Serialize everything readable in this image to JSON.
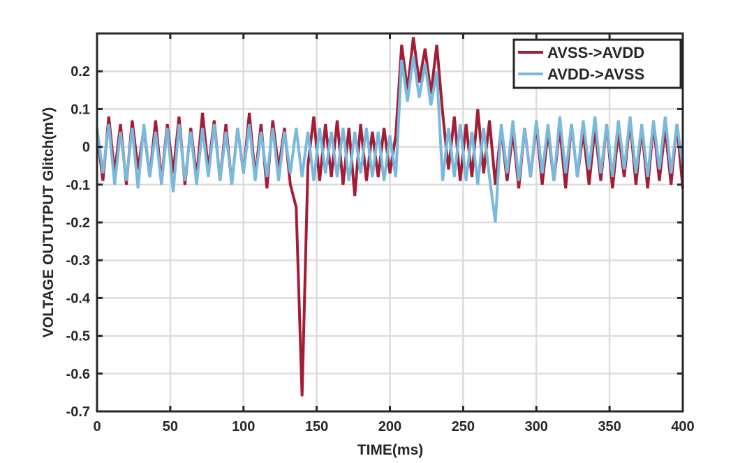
{
  "chart_data": {
    "type": "line",
    "title": "",
    "xlabel": "TIME(ms)",
    "ylabel": "VOLTAGE OUTUTPUT Glitch(mV)",
    "xlim": [
      0,
      400
    ],
    "ylim": [
      -0.7,
      0.3
    ],
    "xticks": [
      0,
      50,
      100,
      150,
      200,
      250,
      300,
      350,
      400
    ],
    "yticks": [
      -0.7,
      -0.6,
      -0.5,
      -0.4,
      -0.3,
      -0.2,
      -0.1,
      0,
      0.1,
      0.2
    ],
    "ytick_labels": [
      "-0.7",
      "-0.6",
      "-0.5",
      "-0.4",
      "-0.3",
      "-0.2",
      "-0.1",
      "0",
      "0.1",
      "0.2"
    ],
    "grid": true,
    "legend_position": "top-right",
    "x_step": 4,
    "series": [
      {
        "name": "AVSS->AVDD",
        "color": "#a51c36",
        "values": [
          0.04,
          -0.09,
          0.08,
          -0.07,
          0.06,
          -0.1,
          0.07,
          -0.06,
          0.05,
          -0.08,
          0.07,
          -0.09,
          0.06,
          -0.07,
          0.08,
          -0.1,
          0.05,
          -0.08,
          0.09,
          -0.06,
          0.07,
          -0.09,
          0.06,
          -0.1,
          0.05,
          -0.07,
          0.09,
          -0.08,
          0.06,
          -0.11,
          0.07,
          -0.06,
          0.05,
          -0.1,
          -0.16,
          -0.66,
          -0.05,
          0.08,
          -0.09,
          0.06,
          -0.08,
          0.07,
          -0.1,
          0.05,
          -0.13,
          0.06,
          -0.09,
          0.04,
          -0.08,
          0.05,
          -0.07,
          0.03,
          0.27,
          0.15,
          0.29,
          0.17,
          0.26,
          0.14,
          0.27,
          0.09,
          -0.06,
          0.08,
          -0.09,
          0.06,
          -0.08,
          0.1,
          -0.07,
          0.07,
          -0.1,
          0.05,
          -0.09,
          0.04,
          -0.11,
          0.05,
          -0.08,
          0.06,
          -0.1,
          0.04,
          -0.09,
          0.05,
          -0.11,
          0.06,
          -0.08,
          0.04,
          -0.1,
          0.05,
          -0.09,
          0.06,
          -0.11,
          0.04,
          -0.08,
          0.07,
          -0.1,
          0.05,
          -0.11,
          0.06,
          -0.09,
          0.05,
          -0.1,
          0.06,
          -0.11
        ]
      },
      {
        "name": "AVDD->AVSS",
        "color": "#79b9dc",
        "values": [
          0.05,
          -0.07,
          0.06,
          -0.1,
          0.04,
          -0.09,
          0.05,
          -0.11,
          0.06,
          -0.08,
          0.04,
          -0.1,
          0.05,
          -0.12,
          0.06,
          -0.09,
          0.04,
          -0.1,
          0.05,
          -0.08,
          0.06,
          -0.09,
          0.04,
          -0.1,
          0.05,
          -0.07,
          0.06,
          -0.09,
          0.04,
          -0.08,
          0.05,
          -0.09,
          0.04,
          -0.07,
          0.05,
          -0.08,
          0.04,
          -0.09,
          0.05,
          -0.07,
          0.04,
          -0.08,
          0.05,
          -0.09,
          0.04,
          -0.07,
          0.05,
          -0.08,
          0.04,
          -0.09,
          0.03,
          -0.08,
          0.23,
          0.12,
          0.24,
          0.13,
          0.22,
          0.11,
          0.2,
          -0.09,
          0.05,
          -0.08,
          0.06,
          -0.09,
          0.04,
          -0.1,
          0.05,
          -0.08,
          -0.2,
          0.06,
          -0.07,
          0.07,
          -0.09,
          0.05,
          -0.08,
          0.07,
          -0.07,
          0.06,
          -0.09,
          0.08,
          -0.07,
          0.06,
          -0.08,
          0.07,
          -0.06,
          0.08,
          -0.07,
          0.06,
          -0.08,
          0.07,
          -0.06,
          0.08,
          -0.07,
          0.06,
          -0.08,
          0.07,
          -0.06,
          0.08,
          -0.07,
          0.06,
          -0.05
        ]
      }
    ]
  }
}
